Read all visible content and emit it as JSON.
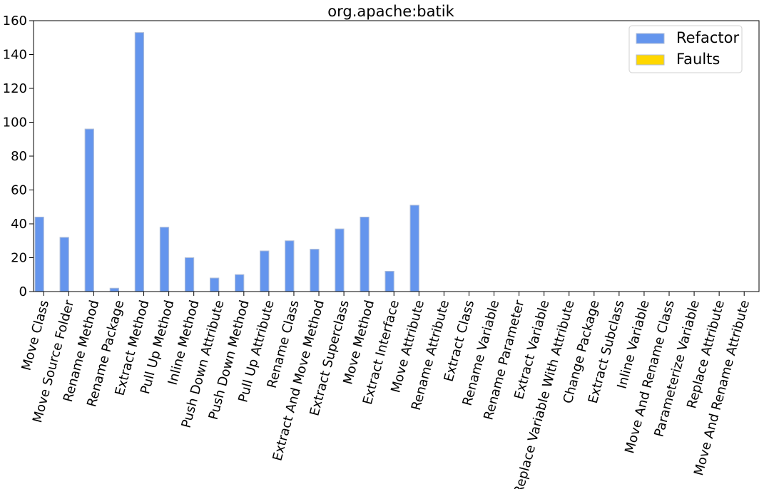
{
  "chart_data": {
    "type": "bar",
    "title": "org.apache:batik",
    "xlabel": "",
    "ylabel": "",
    "ylim": [
      0,
      160
    ],
    "yticks": [
      0,
      20,
      40,
      60,
      80,
      100,
      120,
      140,
      160
    ],
    "grid": false,
    "legend_placement": "top-right",
    "categories": [
      "Move Class",
      "Move Source Folder",
      "Rename Method",
      "Rename Package",
      "Extract Method",
      "Pull Up Method",
      "Inline Method",
      "Push Down Attribute",
      "Push Down Method",
      "Pull Up Attribute",
      "Rename Class",
      "Extract And Move Method",
      "Extract Superclass",
      "Move Method",
      "Extract Interface",
      "Move Attribute",
      "Rename Attribute",
      "Extract Class",
      "Rename Variable",
      "Rename Parameter",
      "Extract Variable",
      "Replace Variable With Attribute",
      "Change Package",
      "Extract Subclass",
      "Inline Variable",
      "Move And Rename Class",
      "Parameterize Variable",
      "Replace Attribute",
      "Move And Rename Attribute"
    ],
    "series": [
      {
        "name": "Refactor",
        "color": "#6495ed",
        "values": [
          44,
          32,
          96,
          2,
          153,
          38,
          20,
          8,
          10,
          24,
          30,
          25,
          37,
          44,
          12,
          51,
          0,
          0,
          0,
          0,
          0,
          0,
          0,
          0,
          0,
          0,
          0,
          0,
          0
        ]
      },
      {
        "name": "Faults",
        "color": "#ffd700",
        "values": [
          0,
          0,
          0,
          0,
          0,
          0,
          0,
          0,
          0,
          0,
          0,
          0,
          0,
          0,
          0,
          0,
          0,
          0,
          0,
          0,
          0,
          0,
          0,
          0,
          0,
          0,
          0,
          0,
          0
        ]
      }
    ]
  }
}
